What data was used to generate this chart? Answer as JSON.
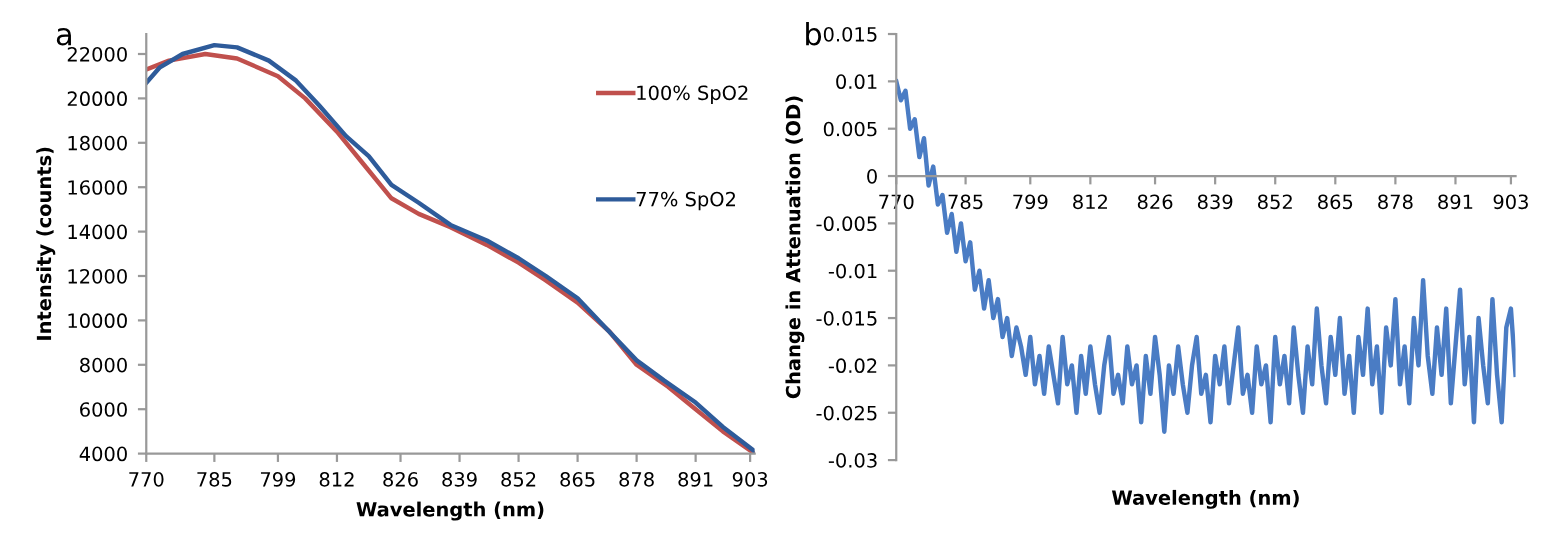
{
  "chart_data": [
    {
      "type": "line",
      "title": "a",
      "xlabel": "Wavelength (nm)",
      "ylabel": "Intensity (counts)",
      "xlim": [
        770,
        904
      ],
      "xticks": [
        770,
        785,
        799,
        812,
        826,
        839,
        852,
        865,
        878,
        891,
        903
      ],
      "ylim": [
        4000,
        22900
      ],
      "yticks": [
        4000,
        6000,
        8000,
        10000,
        12000,
        14000,
        16000,
        18000,
        20000,
        22000
      ],
      "grid": false,
      "legend": "top right",
      "series": [
        {
          "name": "100% SpO2",
          "color": "#c0504d",
          "x": [
            770,
            775,
            783,
            790,
            799,
            805,
            812,
            818,
            824,
            830,
            837,
            845,
            852,
            858,
            865,
            872,
            878,
            885,
            891,
            897,
            904
          ],
          "values": [
            21300,
            21700,
            22000,
            21800,
            21000,
            20000,
            18500,
            17000,
            15500,
            14800,
            14200,
            13400,
            12600,
            11800,
            10800,
            9500,
            8000,
            7000,
            6000,
            5000,
            4000
          ]
        },
        {
          "name": "77% SpO2",
          "color": "#2e5b9a",
          "x": [
            770,
            773,
            778,
            785,
            790,
            797,
            803,
            808,
            814,
            819,
            824,
            830,
            837,
            845,
            852,
            858,
            865,
            871,
            878,
            884,
            891,
            897,
            904
          ],
          "values": [
            20700,
            21400,
            22000,
            22400,
            22300,
            21700,
            20800,
            19700,
            18300,
            17400,
            16100,
            15300,
            14300,
            13600,
            12800,
            12000,
            11000,
            9700,
            8200,
            7300,
            6300,
            5200,
            4100
          ]
        }
      ]
    },
    {
      "type": "line",
      "title": "b",
      "xlabel": "Wavelength (nm)",
      "ylabel": "Change in Attenuation (OD)",
      "xlim": [
        770,
        904
      ],
      "xticks": [
        770,
        785,
        799,
        812,
        826,
        839,
        852,
        865,
        878,
        891,
        903
      ],
      "ylim": [
        -0.03,
        0.015
      ],
      "yticks": [
        -0.03,
        -0.025,
        -0.02,
        -0.015,
        -0.01,
        -0.005,
        0,
        0.005,
        0.01,
        0.015
      ],
      "grid": false,
      "legend": false,
      "series": [
        {
          "color": "#4a7cc4",
          "x": [
            770,
            771,
            772,
            773,
            774,
            775,
            776,
            777,
            778,
            779,
            780,
            781,
            782,
            783,
            784,
            785,
            786,
            787,
            788,
            789,
            790,
            791,
            792,
            793,
            794,
            795,
            796,
            797,
            798,
            799,
            800,
            801,
            802,
            803,
            804,
            805,
            806,
            807,
            808,
            809,
            810,
            811,
            812,
            813,
            814,
            815,
            816,
            817,
            818,
            819,
            820,
            821,
            822,
            823,
            824,
            825,
            826,
            827,
            828,
            829,
            830,
            831,
            832,
            833,
            834,
            835,
            836,
            837,
            838,
            839,
            840,
            841,
            842,
            843,
            844,
            845,
            846,
            847,
            848,
            849,
            850,
            851,
            852,
            853,
            854,
            855,
            856,
            857,
            858,
            859,
            860,
            861,
            862,
            863,
            864,
            865,
            866,
            867,
            868,
            869,
            870,
            871,
            872,
            873,
            874,
            875,
            876,
            877,
            878,
            879,
            880,
            881,
            882,
            883,
            884,
            885,
            886,
            887,
            888,
            889,
            890,
            891,
            892,
            893,
            894,
            895,
            896,
            897,
            898,
            899,
            900,
            901,
            902,
            903,
            904
          ],
          "values": [
            0.01,
            0.008,
            0.009,
            0.005,
            0.006,
            0.002,
            0.004,
            -0.001,
            0.001,
            -0.003,
            -0.002,
            -0.006,
            -0.004,
            -0.008,
            -0.005,
            -0.009,
            -0.007,
            -0.012,
            -0.01,
            -0.014,
            -0.011,
            -0.015,
            -0.013,
            -0.017,
            -0.015,
            -0.019,
            -0.016,
            -0.018,
            -0.021,
            -0.017,
            -0.022,
            -0.019,
            -0.023,
            -0.018,
            -0.021,
            -0.024,
            -0.017,
            -0.022,
            -0.02,
            -0.025,
            -0.019,
            -0.023,
            -0.018,
            -0.022,
            -0.025,
            -0.02,
            -0.017,
            -0.023,
            -0.021,
            -0.024,
            -0.018,
            -0.022,
            -0.02,
            -0.026,
            -0.019,
            -0.023,
            -0.017,
            -0.021,
            -0.027,
            -0.02,
            -0.023,
            -0.018,
            -0.022,
            -0.025,
            -0.02,
            -0.017,
            -0.023,
            -0.021,
            -0.026,
            -0.019,
            -0.022,
            -0.018,
            -0.024,
            -0.02,
            -0.016,
            -0.023,
            -0.021,
            -0.025,
            -0.018,
            -0.022,
            -0.02,
            -0.026,
            -0.017,
            -0.022,
            -0.019,
            -0.024,
            -0.016,
            -0.021,
            -0.025,
            -0.018,
            -0.022,
            -0.014,
            -0.02,
            -0.024,
            -0.017,
            -0.021,
            -0.015,
            -0.023,
            -0.019,
            -0.025,
            -0.017,
            -0.021,
            -0.014,
            -0.022,
            -0.018,
            -0.025,
            -0.016,
            -0.02,
            -0.013,
            -0.022,
            -0.018,
            -0.024,
            -0.015,
            -0.02,
            -0.011,
            -0.019,
            -0.023,
            -0.016,
            -0.021,
            -0.014,
            -0.024,
            -0.018,
            -0.012,
            -0.022,
            -0.017,
            -0.026,
            -0.015,
            -0.02,
            -0.024,
            -0.013,
            -0.021,
            -0.026,
            -0.016,
            -0.014,
            -0.021
          ]
        }
      ]
    }
  ]
}
